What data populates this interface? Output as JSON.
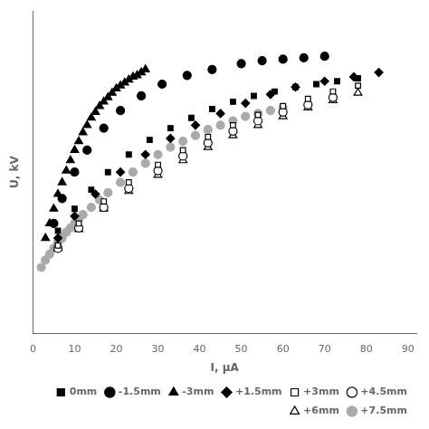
{
  "chart_data": {
    "type": "scatter",
    "xlabel": "I, μA",
    "ylabel": "U, kV",
    "xlim": [
      0,
      92
    ],
    "ylim": [
      0,
      22
    ],
    "xticks": [
      0,
      10,
      20,
      30,
      40,
      50,
      60,
      70,
      80,
      90
    ],
    "tick_labels": "x",
    "grid": false,
    "legend": "lower right",
    "series": [
      {
        "name": "0mm",
        "marker": "square",
        "color": "black",
        "x": [
          6,
          10,
          14,
          18,
          23,
          28,
          33,
          38,
          43,
          48,
          53,
          58,
          63,
          68,
          73,
          78
        ],
        "values": [
          7.0,
          8.5,
          9.8,
          11.0,
          12.2,
          13.2,
          14.0,
          14.7,
          15.3,
          15.8,
          16.2,
          16.5,
          16.8,
          17.0,
          17.2,
          17.4
        ]
      },
      {
        "name": "-1.5mm",
        "marker": "circle",
        "color": "black",
        "x": [
          5,
          7,
          10,
          13,
          17,
          21,
          26,
          31,
          37,
          43,
          50,
          55,
          60,
          65,
          70
        ],
        "values": [
          7.5,
          9.2,
          11.0,
          12.5,
          14.0,
          15.2,
          16.2,
          17.0,
          17.6,
          18.0,
          18.4,
          18.6,
          18.7,
          18.8,
          18.9
        ]
      },
      {
        "name": "-3mm",
        "marker": "triangle",
        "color": "black",
        "x": [
          3,
          4,
          5,
          6,
          7,
          8,
          9,
          10,
          11,
          12,
          13,
          14,
          15,
          16,
          17,
          18,
          19,
          20,
          21,
          22,
          23,
          24,
          25,
          26,
          27
        ],
        "values": [
          6.5,
          7.5,
          8.5,
          9.5,
          10.3,
          11.1,
          11.8,
          12.5,
          13.1,
          13.7,
          14.2,
          14.7,
          15.1,
          15.5,
          15.8,
          16.1,
          16.4,
          16.7,
          16.9,
          17.1,
          17.3,
          17.5,
          17.6,
          17.8,
          18.0
        ]
      },
      {
        "name": "+1.5mm",
        "marker": "diamond",
        "color": "black",
        "x": [
          6,
          10,
          15,
          21,
          27,
          33,
          39,
          45,
          51,
          57,
          63,
          70,
          77,
          83
        ],
        "values": [
          6.5,
          8.0,
          9.5,
          11.0,
          12.2,
          13.3,
          14.2,
          15.0,
          15.7,
          16.3,
          16.8,
          17.2,
          17.5,
          17.8
        ]
      },
      {
        "name": "+3mm",
        "marker": "open_square",
        "color": "black",
        "x": [
          6,
          11,
          17,
          23,
          30,
          36,
          42,
          48,
          54,
          60,
          66,
          72,
          78
        ],
        "values": [
          6.0,
          7.5,
          9.0,
          10.3,
          11.5,
          12.5,
          13.4,
          14.2,
          14.9,
          15.5,
          16.0,
          16.5,
          16.9
        ]
      },
      {
        "name": "+4.5mm",
        "marker": "open_circle",
        "color": "black",
        "x": [
          6,
          11,
          17,
          23,
          30,
          36,
          42,
          48,
          54,
          60,
          66,
          72
        ],
        "values": [
          5.8,
          7.2,
          8.6,
          9.9,
          11.1,
          12.1,
          13.0,
          13.8,
          14.5,
          15.1,
          15.6,
          16.1
        ]
      },
      {
        "name": "+6mm",
        "marker": "open_triangle",
        "color": "black",
        "x": [
          6,
          11,
          17,
          23,
          30,
          36,
          42,
          48,
          54,
          60,
          66,
          72,
          78
        ],
        "values": [
          5.8,
          7.1,
          8.5,
          9.7,
          10.8,
          11.8,
          12.7,
          13.5,
          14.2,
          14.8,
          15.4,
          15.9,
          16.4
        ]
      },
      {
        "name": "+7.5mm",
        "marker": "circle",
        "color": "#aaaaaa",
        "x": [
          2,
          3,
          4,
          5,
          6,
          7,
          8,
          9,
          10,
          11,
          12,
          14,
          16,
          18,
          21,
          24,
          27,
          30,
          33,
          36,
          39,
          42,
          45,
          48,
          51,
          54,
          57,
          60
        ],
        "values": [
          4.5,
          5.0,
          5.4,
          5.8,
          6.2,
          6.5,
          6.9,
          7.2,
          7.5,
          7.8,
          8.1,
          8.6,
          9.1,
          9.6,
          10.3,
          11.0,
          11.6,
          12.2,
          12.7,
          13.1,
          13.5,
          13.9,
          14.2,
          14.5,
          14.8,
          15.0,
          15.2,
          15.4
        ]
      }
    ]
  }
}
